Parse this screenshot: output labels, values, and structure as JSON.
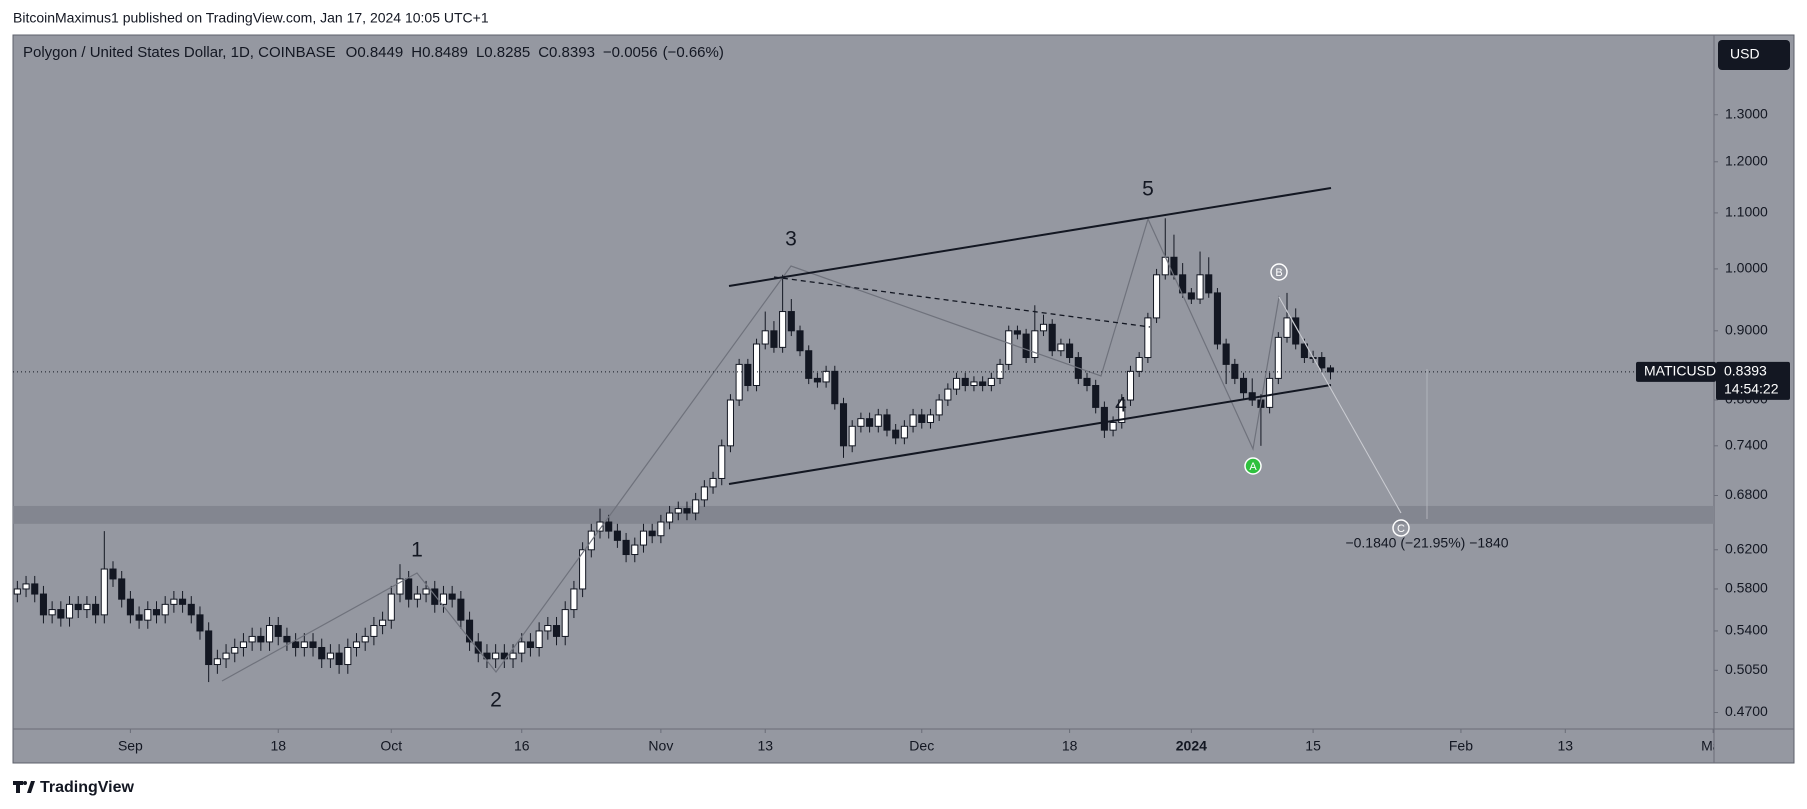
{
  "header": {
    "published": "BitcoinMaximus1 published on TradingView.com, Jan 17, 2024 10:05 UTC+1",
    "brand": "TradingView"
  },
  "chart_data": {
    "type": "candlestick",
    "title": "Polygon / United States Dollar, 1D, COINBASE",
    "legend_ohlc": [
      {
        "label": "O",
        "value": 0.8449
      },
      {
        "label": "H",
        "value": 0.8489
      },
      {
        "label": "L",
        "value": 0.8285
      },
      {
        "label": "C",
        "value": 0.8393
      }
    ],
    "change": {
      "value": -0.0056,
      "label": "−0.0056"
    },
    "change_pct": {
      "value": -0.66,
      "label": "(−0.66%)"
    },
    "currency": "USD",
    "symbol": "MATICUSD",
    "last_price": 0.8393,
    "countdown": "14:54:22",
    "up_color": "#ffffff",
    "down_color": "#131722",
    "log_scale": true,
    "grid": false,
    "xlim": [
      -0.5,
      195.1
    ],
    "xticks": [
      {
        "value": 13,
        "label": "Sep"
      },
      {
        "value": 30,
        "label": "18"
      },
      {
        "value": 43,
        "label": "Oct"
      },
      {
        "value": 58,
        "label": "16"
      },
      {
        "value": 74,
        "label": "Nov"
      },
      {
        "value": 86,
        "label": "13"
      },
      {
        "value": 104,
        "label": "Dec"
      },
      {
        "value": 121,
        "label": "18"
      },
      {
        "value": 135,
        "label": "2024",
        "bold": true
      },
      {
        "value": 149,
        "label": "15"
      },
      {
        "value": 166,
        "label": "Feb"
      },
      {
        "value": 178,
        "label": "13"
      },
      {
        "value": 195,
        "label": "Mar"
      }
    ],
    "ylim": [
      0.457,
      1.489
    ],
    "yticks": [
      {
        "value": 1.3,
        "label": "1.3000"
      },
      {
        "value": 1.2,
        "label": "1.2000"
      },
      {
        "value": 1.1,
        "label": "1.1000"
      },
      {
        "value": 1.0,
        "label": "1.0000"
      },
      {
        "value": 0.9,
        "label": "0.9000"
      },
      {
        "value": 0.8,
        "label": "0.8000"
      },
      {
        "value": 0.74,
        "label": "0.7400"
      },
      {
        "value": 0.68,
        "label": "0.6800"
      },
      {
        "value": 0.62,
        "label": "0.6200"
      },
      {
        "value": 0.58,
        "label": "0.5800"
      },
      {
        "value": 0.54,
        "label": "0.5400"
      },
      {
        "value": 0.505,
        "label": "0.5050"
      },
      {
        "value": 0.47,
        "label": "0.4700"
      }
    ],
    "support_zone": [
      0.648,
      0.668
    ],
    "wave_labels": [
      "1",
      "2",
      "3",
      "4",
      "5"
    ],
    "correction_labels": [
      "A",
      "B",
      "C"
    ],
    "measurement": "−0.1840 (−21.95%) −1840",
    "candles": [
      [
        0.575,
        0.588,
        0.567,
        0.58
      ],
      [
        0.58,
        0.593,
        0.572,
        0.585
      ],
      [
        0.585,
        0.593,
        0.567,
        0.575
      ],
      [
        0.575,
        0.583,
        0.547,
        0.555
      ],
      [
        0.555,
        0.568,
        0.547,
        0.56
      ],
      [
        0.56,
        0.568,
        0.544,
        0.552
      ],
      [
        0.552,
        0.573,
        0.544,
        0.565
      ],
      [
        0.565,
        0.573,
        0.552,
        0.56
      ],
      [
        0.56,
        0.573,
        0.552,
        0.565
      ],
      [
        0.565,
        0.573,
        0.547,
        0.555
      ],
      [
        0.555,
        0.64,
        0.547,
        0.6
      ],
      [
        0.6,
        0.608,
        0.582,
        0.59
      ],
      [
        0.59,
        0.598,
        0.562,
        0.57
      ],
      [
        0.57,
        0.578,
        0.547,
        0.555
      ],
      [
        0.555,
        0.563,
        0.542,
        0.55
      ],
      [
        0.55,
        0.568,
        0.542,
        0.56
      ],
      [
        0.56,
        0.568,
        0.547,
        0.555
      ],
      [
        0.555,
        0.573,
        0.547,
        0.565
      ],
      [
        0.565,
        0.578,
        0.557,
        0.57
      ],
      [
        0.57,
        0.578,
        0.557,
        0.565
      ],
      [
        0.565,
        0.573,
        0.547,
        0.555
      ],
      [
        0.555,
        0.563,
        0.532,
        0.54
      ],
      [
        0.54,
        0.548,
        0.495,
        0.51
      ],
      [
        0.51,
        0.523,
        0.502,
        0.515
      ],
      [
        0.515,
        0.528,
        0.507,
        0.52
      ],
      [
        0.52,
        0.533,
        0.512,
        0.525
      ],
      [
        0.525,
        0.538,
        0.517,
        0.53
      ],
      [
        0.53,
        0.543,
        0.522,
        0.535
      ],
      [
        0.535,
        0.543,
        0.522,
        0.53
      ],
      [
        0.53,
        0.553,
        0.522,
        0.545
      ],
      [
        0.545,
        0.553,
        0.527,
        0.535
      ],
      [
        0.535,
        0.543,
        0.522,
        0.53
      ],
      [
        0.53,
        0.538,
        0.517,
        0.525
      ],
      [
        0.525,
        0.538,
        0.517,
        0.53
      ],
      [
        0.53,
        0.538,
        0.517,
        0.525
      ],
      [
        0.525,
        0.533,
        0.507,
        0.515
      ],
      [
        0.515,
        0.528,
        0.507,
        0.52
      ],
      [
        0.52,
        0.528,
        0.502,
        0.51
      ],
      [
        0.51,
        0.533,
        0.502,
        0.525
      ],
      [
        0.525,
        0.538,
        0.517,
        0.53
      ],
      [
        0.53,
        0.543,
        0.522,
        0.535
      ],
      [
        0.535,
        0.553,
        0.527,
        0.545
      ],
      [
        0.545,
        0.558,
        0.537,
        0.55
      ],
      [
        0.55,
        0.583,
        0.542,
        0.575
      ],
      [
        0.575,
        0.605,
        0.567,
        0.59
      ],
      [
        0.59,
        0.598,
        0.562,
        0.57
      ],
      [
        0.57,
        0.583,
        0.562,
        0.575
      ],
      [
        0.575,
        0.588,
        0.567,
        0.58
      ],
      [
        0.58,
        0.588,
        0.557,
        0.565
      ],
      [
        0.565,
        0.583,
        0.557,
        0.575
      ],
      [
        0.575,
        0.583,
        0.562,
        0.57
      ],
      [
        0.57,
        0.578,
        0.542,
        0.55
      ],
      [
        0.55,
        0.558,
        0.522,
        0.53
      ],
      [
        0.53,
        0.538,
        0.512,
        0.52
      ],
      [
        0.52,
        0.528,
        0.507,
        0.515
      ],
      [
        0.515,
        0.528,
        0.507,
        0.52
      ],
      [
        0.52,
        0.528,
        0.507,
        0.515
      ],
      [
        0.515,
        0.528,
        0.507,
        0.52
      ],
      [
        0.52,
        0.538,
        0.512,
        0.53
      ],
      [
        0.53,
        0.538,
        0.517,
        0.525
      ],
      [
        0.525,
        0.548,
        0.517,
        0.54
      ],
      [
        0.54,
        0.553,
        0.532,
        0.545
      ],
      [
        0.545,
        0.553,
        0.527,
        0.535
      ],
      [
        0.535,
        0.568,
        0.527,
        0.56
      ],
      [
        0.56,
        0.588,
        0.552,
        0.58
      ],
      [
        0.58,
        0.628,
        0.572,
        0.62
      ],
      [
        0.62,
        0.648,
        0.612,
        0.64
      ],
      [
        0.64,
        0.665,
        0.632,
        0.65
      ],
      [
        0.65,
        0.658,
        0.632,
        0.64
      ],
      [
        0.64,
        0.648,
        0.622,
        0.63
      ],
      [
        0.63,
        0.638,
        0.607,
        0.615
      ],
      [
        0.615,
        0.633,
        0.607,
        0.625
      ],
      [
        0.625,
        0.648,
        0.617,
        0.64
      ],
      [
        0.64,
        0.648,
        0.627,
        0.635
      ],
      [
        0.635,
        0.658,
        0.627,
        0.65
      ],
      [
        0.65,
        0.668,
        0.642,
        0.66
      ],
      [
        0.66,
        0.673,
        0.652,
        0.665
      ],
      [
        0.665,
        0.673,
        0.652,
        0.66
      ],
      [
        0.66,
        0.683,
        0.652,
        0.675
      ],
      [
        0.675,
        0.698,
        0.667,
        0.69
      ],
      [
        0.69,
        0.708,
        0.682,
        0.7
      ],
      [
        0.7,
        0.748,
        0.692,
        0.74
      ],
      [
        0.74,
        0.808,
        0.732,
        0.8
      ],
      [
        0.8,
        0.858,
        0.792,
        0.85
      ],
      [
        0.85,
        0.858,
        0.812,
        0.82
      ],
      [
        0.82,
        0.888,
        0.812,
        0.88
      ],
      [
        0.88,
        0.93,
        0.872,
        0.9
      ],
      [
        0.9,
        0.915,
        0.867,
        0.875
      ],
      [
        0.875,
        0.99,
        0.867,
        0.93
      ],
      [
        0.93,
        0.95,
        0.892,
        0.9
      ],
      [
        0.9,
        0.908,
        0.862,
        0.87
      ],
      [
        0.87,
        0.878,
        0.822,
        0.83
      ],
      [
        0.83,
        0.838,
        0.817,
        0.825
      ],
      [
        0.825,
        0.848,
        0.817,
        0.84
      ],
      [
        0.84,
        0.848,
        0.787,
        0.795
      ],
      [
        0.795,
        0.803,
        0.725,
        0.74
      ],
      [
        0.74,
        0.773,
        0.732,
        0.765
      ],
      [
        0.765,
        0.783,
        0.757,
        0.775
      ],
      [
        0.775,
        0.783,
        0.757,
        0.765
      ],
      [
        0.765,
        0.788,
        0.757,
        0.78
      ],
      [
        0.78,
        0.788,
        0.752,
        0.76
      ],
      [
        0.76,
        0.768,
        0.742,
        0.75
      ],
      [
        0.75,
        0.773,
        0.742,
        0.765
      ],
      [
        0.765,
        0.788,
        0.757,
        0.78
      ],
      [
        0.78,
        0.788,
        0.762,
        0.77
      ],
      [
        0.77,
        0.788,
        0.762,
        0.78
      ],
      [
        0.78,
        0.808,
        0.772,
        0.8
      ],
      [
        0.8,
        0.823,
        0.792,
        0.815
      ],
      [
        0.815,
        0.838,
        0.807,
        0.83
      ],
      [
        0.83,
        0.838,
        0.812,
        0.82
      ],
      [
        0.82,
        0.833,
        0.812,
        0.825
      ],
      [
        0.825,
        0.833,
        0.812,
        0.82
      ],
      [
        0.82,
        0.838,
        0.812,
        0.83
      ],
      [
        0.83,
        0.858,
        0.822,
        0.85
      ],
      [
        0.85,
        0.908,
        0.842,
        0.9
      ],
      [
        0.9,
        0.908,
        0.887,
        0.895
      ],
      [
        0.895,
        0.903,
        0.852,
        0.86
      ],
      [
        0.86,
        0.94,
        0.852,
        0.9
      ],
      [
        0.9,
        0.925,
        0.892,
        0.91
      ],
      [
        0.91,
        0.918,
        0.862,
        0.87
      ],
      [
        0.87,
        0.888,
        0.862,
        0.88
      ],
      [
        0.88,
        0.888,
        0.852,
        0.86
      ],
      [
        0.86,
        0.868,
        0.822,
        0.83
      ],
      [
        0.83,
        0.838,
        0.812,
        0.82
      ],
      [
        0.82,
        0.828,
        0.782,
        0.79
      ],
      [
        0.79,
        0.798,
        0.75,
        0.76
      ],
      [
        0.76,
        0.778,
        0.752,
        0.77
      ],
      [
        0.77,
        0.808,
        0.762,
        0.8
      ],
      [
        0.8,
        0.848,
        0.792,
        0.84
      ],
      [
        0.84,
        0.868,
        0.832,
        0.86
      ],
      [
        0.86,
        0.928,
        0.852,
        0.92
      ],
      [
        0.92,
        1.0,
        0.912,
        0.99
      ],
      [
        0.99,
        1.09,
        0.982,
        1.02
      ],
      [
        1.02,
        1.06,
        0.982,
        0.99
      ],
      [
        0.99,
        1.01,
        0.952,
        0.96
      ],
      [
        0.96,
        0.968,
        0.942,
        0.95
      ],
      [
        0.95,
        1.03,
        0.942,
        0.99
      ],
      [
        0.99,
        1.02,
        0.952,
        0.96
      ],
      [
        0.96,
        0.968,
        0.872,
        0.88
      ],
      [
        0.88,
        0.888,
        0.822,
        0.85
      ],
      [
        0.85,
        0.858,
        0.822,
        0.83
      ],
      [
        0.83,
        0.838,
        0.802,
        0.81
      ],
      [
        0.81,
        0.83,
        0.792,
        0.8
      ],
      [
        0.8,
        0.808,
        0.74,
        0.79
      ],
      [
        0.79,
        0.838,
        0.782,
        0.83
      ],
      [
        0.83,
        0.898,
        0.822,
        0.89
      ],
      [
        0.89,
        0.96,
        0.882,
        0.92
      ],
      [
        0.92,
        0.935,
        0.872,
        0.88
      ],
      [
        0.88,
        0.888,
        0.852,
        0.86
      ],
      [
        0.86,
        0.87,
        0.852,
        0.86
      ],
      [
        0.86,
        0.868,
        0.837,
        0.845
      ],
      [
        0.8449,
        0.8489,
        0.8285,
        0.8393
      ]
    ]
  }
}
